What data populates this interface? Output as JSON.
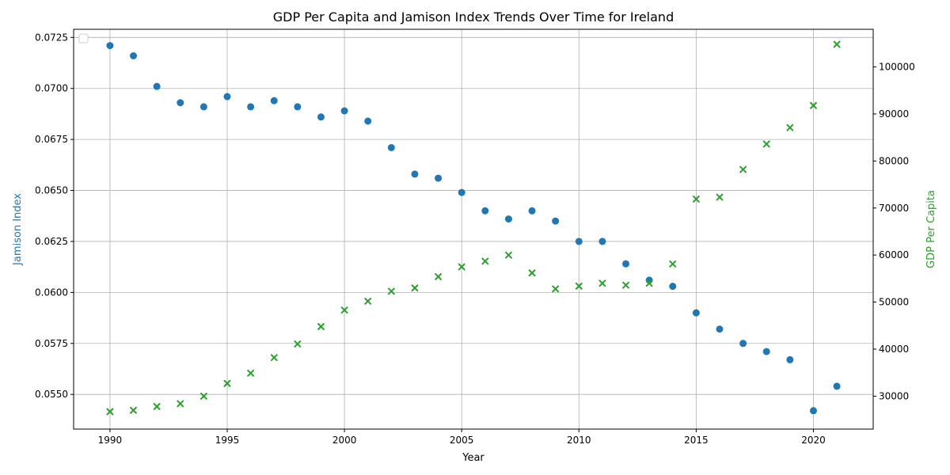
{
  "chart_data": {
    "type": "scatter",
    "title": "GDP Per Capita and Jamison Index Trends Over Time for Ireland",
    "xlabel": "Year",
    "ylabel_left": "Jamison Index",
    "ylabel_right": "GDP Per Capita",
    "xlim": [
      1988.45,
      2022.55
    ],
    "ylim_left": [
      0.0533,
      0.0729
    ],
    "ylim_right": [
      23000,
      108000
    ],
    "x_ticks": [
      1990,
      1995,
      2000,
      2005,
      2010,
      2015,
      2020
    ],
    "y_ticks_left": [
      "0.0550",
      "0.0575",
      "0.0600",
      "0.0625",
      "0.0650",
      "0.0675",
      "0.0700",
      "0.0725"
    ],
    "y_ticks_right": [
      "30000",
      "40000",
      "50000",
      "60000",
      "70000",
      "80000",
      "90000",
      "100000"
    ],
    "grid": true,
    "legend": "top-left (empty)",
    "colors": {
      "jamison": "#1f77b4",
      "gdp": "#2ca02c"
    },
    "x": [
      1990,
      1991,
      1992,
      1993,
      1994,
      1995,
      1996,
      1997,
      1998,
      1999,
      2000,
      2001,
      2002,
      2003,
      2004,
      2005,
      2006,
      2007,
      2008,
      2009,
      2010,
      2011,
      2012,
      2013,
      2014,
      2015,
      2016,
      2017,
      2018,
      2019,
      2020,
      2021
    ],
    "series": [
      {
        "marker": "circle",
        "axis": "left",
        "values": [
          0.0721,
          0.0716,
          0.0701,
          0.0693,
          0.0691,
          0.0696,
          0.0691,
          0.0694,
          0.0691,
          0.0686,
          0.0689,
          0.0684,
          0.0671,
          0.0658,
          0.0656,
          0.0649,
          0.064,
          0.0636,
          0.064,
          0.0635,
          0.0625,
          0.0625,
          0.0614,
          0.0606,
          0.0603,
          0.059,
          0.0582,
          0.0575,
          0.0571,
          0.0567,
          0.0542,
          0.0554
        ]
      },
      {
        "marker": "x",
        "axis": "right",
        "values": [
          26700,
          27000,
          27800,
          28400,
          30000,
          32700,
          34900,
          38200,
          41100,
          44800,
          48300,
          50200,
          52300,
          53000,
          55400,
          57500,
          58700,
          60000,
          56200,
          52800,
          53400,
          54000,
          53600,
          54000,
          58100,
          71900,
          72300,
          78200,
          83600,
          87100,
          91800,
          104800
        ]
      }
    ]
  }
}
